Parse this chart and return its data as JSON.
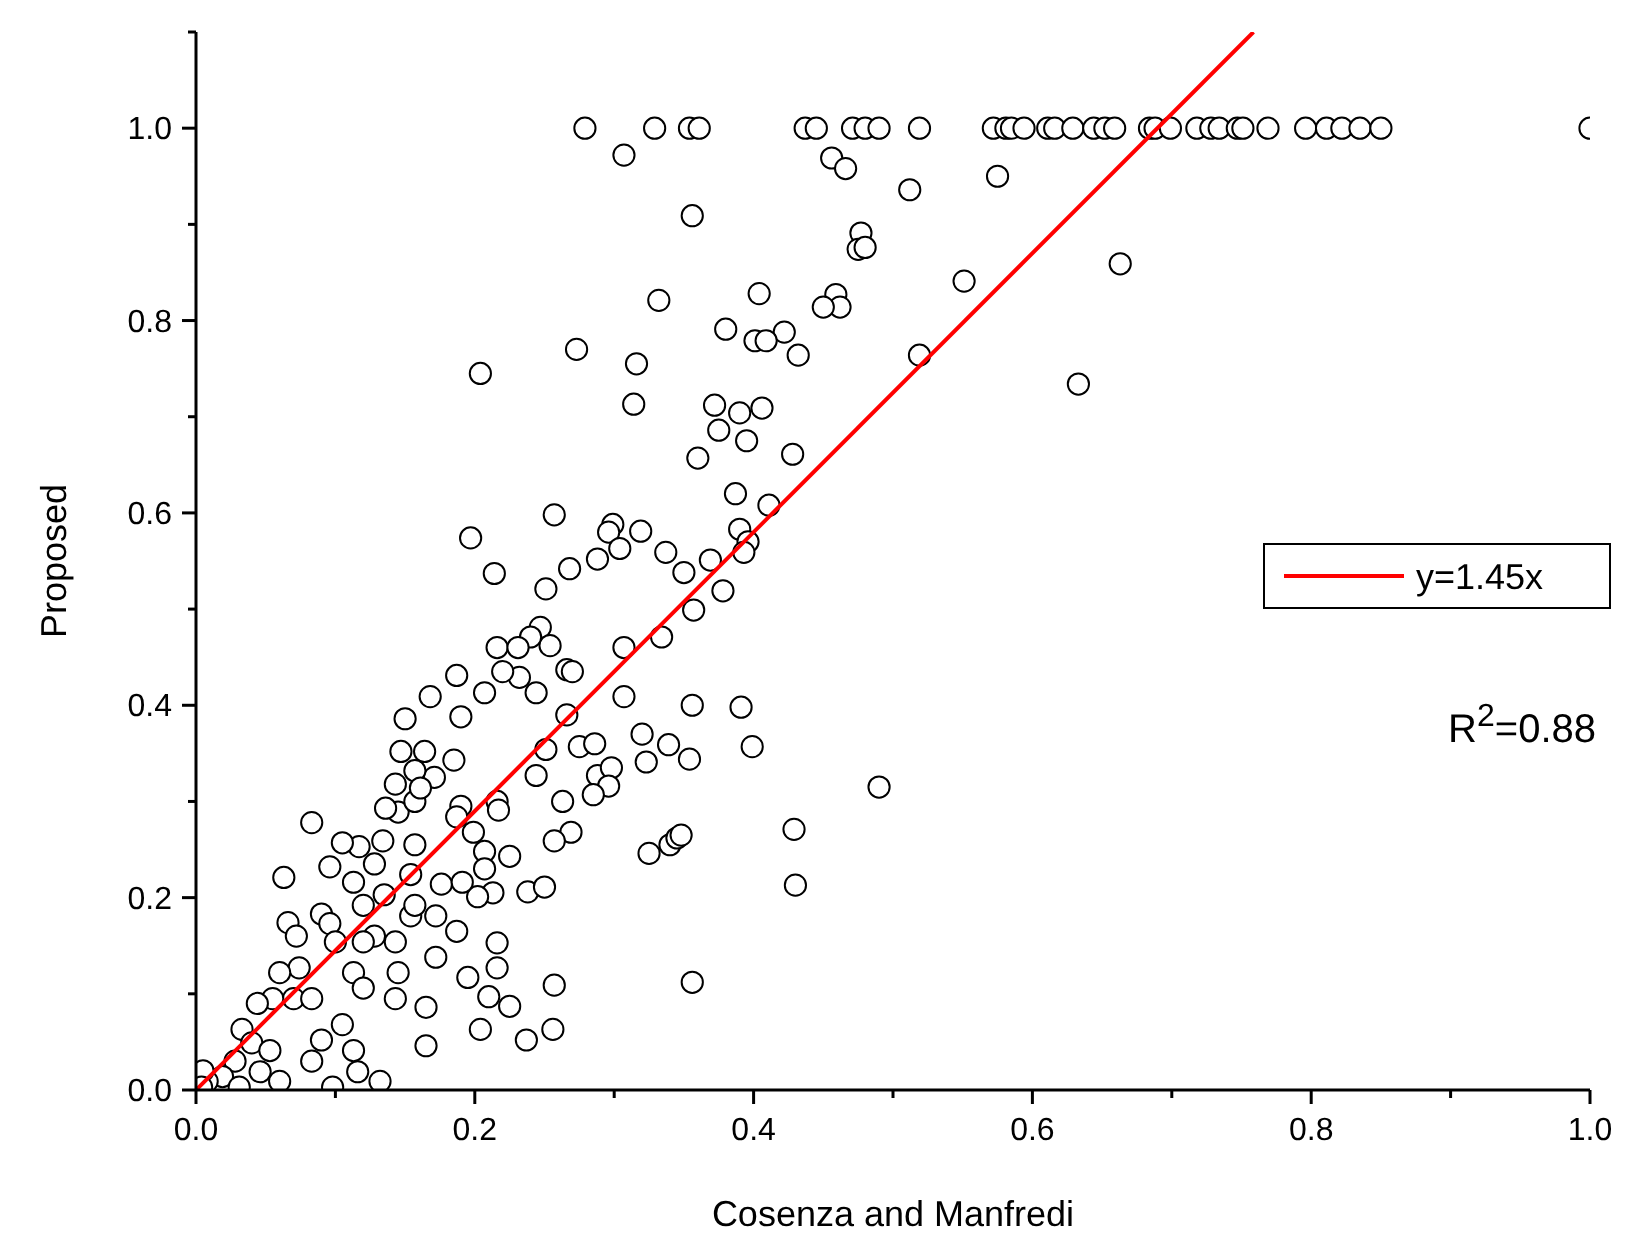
{
  "chart_data": {
    "type": "scatter",
    "xlabel": "Cosenza and Manfredi",
    "ylabel": "Proposed",
    "annotations": [
      "R$^{2}$=0.88"
    ],
    "xlim": [
      0,
      1
    ],
    "ylim": [
      0,
      1.1
    ],
    "xticks": [
      {
        "value": 0,
        "label": "0.0"
      },
      {
        "value": 0.1,
        "label": null
      },
      {
        "value": 0.2,
        "label": "0.2"
      },
      {
        "value": 0.3,
        "label": null
      },
      {
        "value": 0.4,
        "label": "0.4"
      },
      {
        "value": 0.5,
        "label": null
      },
      {
        "value": 0.6,
        "label": "0.6"
      },
      {
        "value": 0.7,
        "label": null
      },
      {
        "value": 0.8,
        "label": "0.8"
      },
      {
        "value": 0.9,
        "label": null
      },
      {
        "value": 1.0,
        "label": "1.0"
      }
    ],
    "yticks": [
      {
        "value": 0,
        "label": "0.0"
      },
      {
        "value": 0.1,
        "label": null
      },
      {
        "value": 0.2,
        "label": "0.2"
      },
      {
        "value": 0.3,
        "label": null
      },
      {
        "value": 0.4,
        "label": "0.4"
      },
      {
        "value": 0.5,
        "label": null
      },
      {
        "value": 0.6,
        "label": "0.6"
      },
      {
        "value": 0.7,
        "label": null
      },
      {
        "value": 0.8,
        "label": "0.8"
      },
      {
        "value": 0.9,
        "label": null
      },
      {
        "value": 1.0,
        "label": "1.0"
      },
      {
        "value": 1.1,
        "label": null
      }
    ],
    "grid": false,
    "legend": "right",
    "series": [
      {
        "marker": "circle",
        "color": "#000000",
        "x": [
          0.279,
          0.329,
          0.354,
          0.361,
          0.437,
          0.445,
          0.471,
          0.48,
          0.49,
          0.519,
          0.572,
          0.581,
          0.585,
          0.594,
          0.611,
          0.616,
          0.629,
          0.644,
          0.652,
          0.659,
          0.684,
          0.688,
          0.699,
          0.718,
          0.728,
          0.734,
          0.747,
          0.751,
          0.769,
          0.796,
          0.811,
          0.822,
          0.835,
          0.85,
          1.0,
          0.307,
          0.456,
          0.466,
          0.575,
          0.512,
          0.356,
          0.477,
          0.475,
          0.48,
          0.663,
          0.551,
          0.459,
          0.462,
          0.45,
          0.404,
          0.332,
          0.38,
          0.422,
          0.401,
          0.409,
          0.316,
          0.633,
          0.519,
          0.432,
          0.273,
          0.204,
          0.314,
          0.372,
          0.375,
          0.39,
          0.406,
          0.395,
          0.36,
          0.428,
          0.411,
          0.387,
          0.257,
          0.299,
          0.296,
          0.319,
          0.39,
          0.396,
          0.393,
          0.304,
          0.197,
          0.337,
          0.35,
          0.214,
          0.268,
          0.288,
          0.369,
          0.357,
          0.378,
          0.251,
          0.334,
          0.247,
          0.254,
          0.24,
          0.216,
          0.231,
          0.307,
          0.266,
          0.27,
          0.244,
          0.232,
          0.22,
          0.187,
          0.168,
          0.207,
          0.15,
          0.19,
          0.307,
          0.266,
          0.356,
          0.391,
          0.399,
          0.32,
          0.339,
          0.354,
          0.323,
          0.275,
          0.286,
          0.288,
          0.298,
          0.244,
          0.251,
          0.49,
          0.296,
          0.285,
          0.263,
          0.269,
          0.257,
          0.325,
          0.34,
          0.345,
          0.348,
          0.429,
          0.43,
          0.238,
          0.25,
          0.356,
          0.257,
          0.256,
          0.237,
          0.204,
          0.225,
          0.21,
          0.216,
          0.216,
          0.225,
          0.207,
          0.207,
          0.213,
          0.202,
          0.216,
          0.217,
          0.19,
          0.199,
          0.171,
          0.185,
          0.164,
          0.147,
          0.143,
          0.157,
          0.145,
          0.136,
          0.134,
          0.117,
          0.128,
          0.096,
          0.113,
          0.12,
          0.09,
          0.096,
          0.1,
          0.063,
          0.066,
          0.072,
          0.074,
          0.06,
          0.07,
          0.055,
          0.044,
          0.033,
          0.04,
          0.028,
          0.019,
          0.008,
          0.053,
          0.083,
          0.113,
          0.132,
          0.098,
          0.116,
          0.06,
          0.165,
          0.143,
          0.145,
          0.113,
          0.128,
          0.154,
          0.172,
          0.157,
          0.187,
          0.176,
          0.157,
          0.191,
          0.154,
          0.143,
          0.083,
          0.105,
          0.165,
          0.195,
          0.172,
          0.12,
          0.09,
          0.046,
          0.005,
          0.004,
          0.031,
          0.12,
          0.135,
          0.105,
          0.083,
          0.187,
          0.157,
          0.161
        ],
        "values": [
          1,
          1,
          1,
          1,
          1,
          1,
          1,
          1,
          1,
          1,
          1,
          1,
          1,
          1,
          1,
          1,
          1,
          1,
          1,
          1,
          1,
          1,
          1,
          1,
          1,
          1,
          1,
          1,
          1,
          1,
          1,
          1,
          1,
          1,
          1,
          0.972,
          0.969,
          0.958,
          0.95,
          0.936,
          0.909,
          0.891,
          0.874,
          0.876,
          0.859,
          0.841,
          0.827,
          0.814,
          0.814,
          0.828,
          0.821,
          0.791,
          0.788,
          0.779,
          0.779,
          0.755,
          0.734,
          0.764,
          0.764,
          0.77,
          0.745,
          0.713,
          0.712,
          0.686,
          0.704,
          0.709,
          0.675,
          0.657,
          0.661,
          0.608,
          0.62,
          0.598,
          0.588,
          0.58,
          0.581,
          0.583,
          0.57,
          0.559,
          0.563,
          0.574,
          0.559,
          0.538,
          0.537,
          0.542,
          0.552,
          0.551,
          0.499,
          0.519,
          0.521,
          0.471,
          0.481,
          0.462,
          0.471,
          0.46,
          0.46,
          0.46,
          0.437,
          0.435,
          0.413,
          0.429,
          0.435,
          0.431,
          0.409,
          0.413,
          0.386,
          0.388,
          0.409,
          0.39,
          0.4,
          0.398,
          0.357,
          0.37,
          0.359,
          0.344,
          0.341,
          0.357,
          0.36,
          0.327,
          0.335,
          0.327,
          0.354,
          0.315,
          0.316,
          0.307,
          0.3,
          0.268,
          0.259,
          0.246,
          0.255,
          0.262,
          0.265,
          0.271,
          0.213,
          0.206,
          0.211,
          0.112,
          0.109,
          0.063,
          0.052,
          0.063,
          0.087,
          0.097,
          0.127,
          0.153,
          0.243,
          0.248,
          0.23,
          0.205,
          0.201,
          0.3,
          0.291,
          0.295,
          0.268,
          0.325,
          0.343,
          0.352,
          0.352,
          0.318,
          0.332,
          0.289,
          0.293,
          0.259,
          0.253,
          0.235,
          0.232,
          0.216,
          0.192,
          0.183,
          0.173,
          0.154,
          0.221,
          0.174,
          0.16,
          0.127,
          0.122,
          0.095,
          0.095,
          0.09,
          0.063,
          0.049,
          0.03,
          0.014,
          0.009,
          0.041,
          0.03,
          0.041,
          0.009,
          0.003,
          0.019,
          0.009,
          0.046,
          0.095,
          0.122,
          0.122,
          0.16,
          0.181,
          0.181,
          0.192,
          0.165,
          0.214,
          0.255,
          0.216,
          0.224,
          0.154,
          0.095,
          0.068,
          0.086,
          0.117,
          0.138,
          0.106,
          0.052,
          0.019,
          0.02,
          0.003,
          0.003,
          0.154,
          0.203,
          0.257,
          0.278,
          0.284,
          0.3,
          0.314
        ]
      },
      {
        "type": "line",
        "name": "y=1.45x",
        "color": "#ff0000",
        "x": [
          0,
          0.7586
        ],
        "values": [
          0,
          1.1
        ]
      }
    ]
  }
}
